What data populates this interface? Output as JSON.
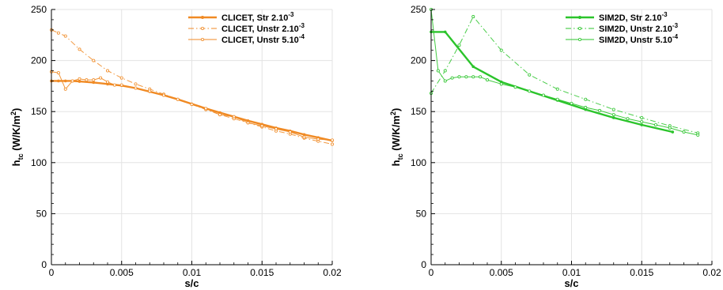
{
  "chart_data": [
    {
      "type": "line",
      "accent": "#f08a24",
      "xlabel": "s/c",
      "ylabel": {
        "base": "h",
        "sub": "tc",
        "unit_pre": " (W/K/m",
        "unit_sup": "2",
        "unit_post": ")"
      },
      "xlim": [
        0,
        0.02
      ],
      "ylim": [
        0,
        250
      ],
      "xticks": [
        "0",
        "0.005",
        "0.01",
        "0.015",
        "0.02"
      ],
      "yticks": [
        "0",
        "50",
        "100",
        "150",
        "200",
        "250"
      ],
      "grid": true,
      "legend_position": "top-right",
      "series": [
        {
          "name": "CLICET, Str  2.10",
          "name_sup": "-3",
          "style": "solid-thick",
          "x": [
            0,
            0.0005,
            0.001,
            0.0015,
            0.002,
            0.003,
            0.004,
            0.005,
            0.006,
            0.007,
            0.008,
            0.009,
            0.01,
            0.011,
            0.012,
            0.013,
            0.014,
            0.015,
            0.016,
            0.017,
            0.018,
            0.019,
            0.02
          ],
          "y": [
            180,
            180,
            180,
            180,
            179.5,
            178.5,
            177,
            175.5,
            173,
            169.5,
            166,
            162,
            157.5,
            153,
            149,
            145,
            141,
            137.5,
            134,
            131,
            127.5,
            124.5,
            121.5
          ]
        },
        {
          "name": "CLICET, Unstr  2.10",
          "name_sup": "-3",
          "style": "dashdot",
          "x": [
            0,
            0.0005,
            0.001,
            0.002,
            0.003,
            0.004,
            0.005,
            0.006,
            0.007,
            0.008,
            0.009,
            0.01,
            0.011,
            0.012,
            0.013,
            0.014,
            0.015,
            0.016,
            0.017,
            0.018,
            0.019,
            0.02
          ],
          "y": [
            230,
            227,
            224,
            211,
            200,
            190,
            183,
            177,
            172,
            167,
            162,
            157,
            152,
            147,
            143,
            139,
            135,
            131,
            128,
            124,
            121,
            118
          ]
        },
        {
          "name": "CLICET, Unstr  5.10",
          "name_sup": "-4",
          "style": "solid-thin",
          "x": [
            0,
            0.0005,
            0.001,
            0.0015,
            0.002,
            0.0025,
            0.003,
            0.0035,
            0.004,
            0.0045,
            0.005,
            0.006,
            0.007,
            0.008,
            0.009,
            0.01,
            0.011,
            0.012,
            0.013,
            0.014,
            0.015,
            0.016,
            0.017,
            0.018,
            0.019,
            0.02
          ],
          "y": [
            189,
            188,
            172,
            180,
            182,
            181,
            181,
            183,
            179,
            176,
            176,
            173,
            170,
            166,
            162,
            157,
            153,
            147,
            145,
            139,
            136,
            133,
            130,
            125,
            123,
            122
          ]
        }
      ]
    },
    {
      "type": "line",
      "accent": "#2bc42b",
      "xlabel": "s/c",
      "ylabel": {
        "base": "h",
        "sub": "tc",
        "unit_pre": " (W/K/m",
        "unit_sup": "2",
        "unit_post": ")"
      },
      "xlim": [
        0,
        0.02
      ],
      "ylim": [
        0,
        250
      ],
      "xticks": [
        "0",
        "0.005",
        "0.01",
        "0.015",
        "0.02"
      ],
      "yticks": [
        "0",
        "50",
        "100",
        "150",
        "200",
        "250"
      ],
      "grid": true,
      "legend_position": "top-right",
      "series": [
        {
          "name": "SIM2D, Str  2.10",
          "name_sup": "-3",
          "style": "solid-thick",
          "x": [
            0,
            0.001,
            0.003,
            0.005,
            0.007,
            0.009,
            0.011,
            0.013,
            0.015,
            0.0172
          ],
          "y": [
            228,
            228,
            194,
            179,
            170,
            161,
            152,
            144,
            137,
            130
          ]
        },
        {
          "name": "SIM2D, Unstr  2.10",
          "name_sup": "-3",
          "style": "dashdot",
          "x": [
            0,
            0.001,
            0.002,
            0.003,
            0.005,
            0.007,
            0.009,
            0.011,
            0.013,
            0.015,
            0.017,
            0.019
          ],
          "y": [
            168,
            190,
            215,
            243,
            210,
            186,
            172,
            162,
            152,
            144,
            136,
            129
          ]
        },
        {
          "name": "SIM2D, Unstr  5.10",
          "name_sup": "-4",
          "style": "solid-thin",
          "x": [
            0,
            0.0005,
            0.001,
            0.0015,
            0.002,
            0.0025,
            0.003,
            0.0035,
            0.004,
            0.005,
            0.006,
            0.007,
            0.008,
            0.009,
            0.01,
            0.011,
            0.012,
            0.013,
            0.014,
            0.015,
            0.016,
            0.017,
            0.018,
            0.019
          ],
          "y": [
            250,
            190,
            180,
            183,
            184,
            184,
            184,
            184,
            181,
            177,
            174,
            170,
            166,
            162,
            158,
            154,
            151,
            147,
            143,
            140,
            137,
            134,
            130,
            127
          ]
        }
      ]
    }
  ]
}
